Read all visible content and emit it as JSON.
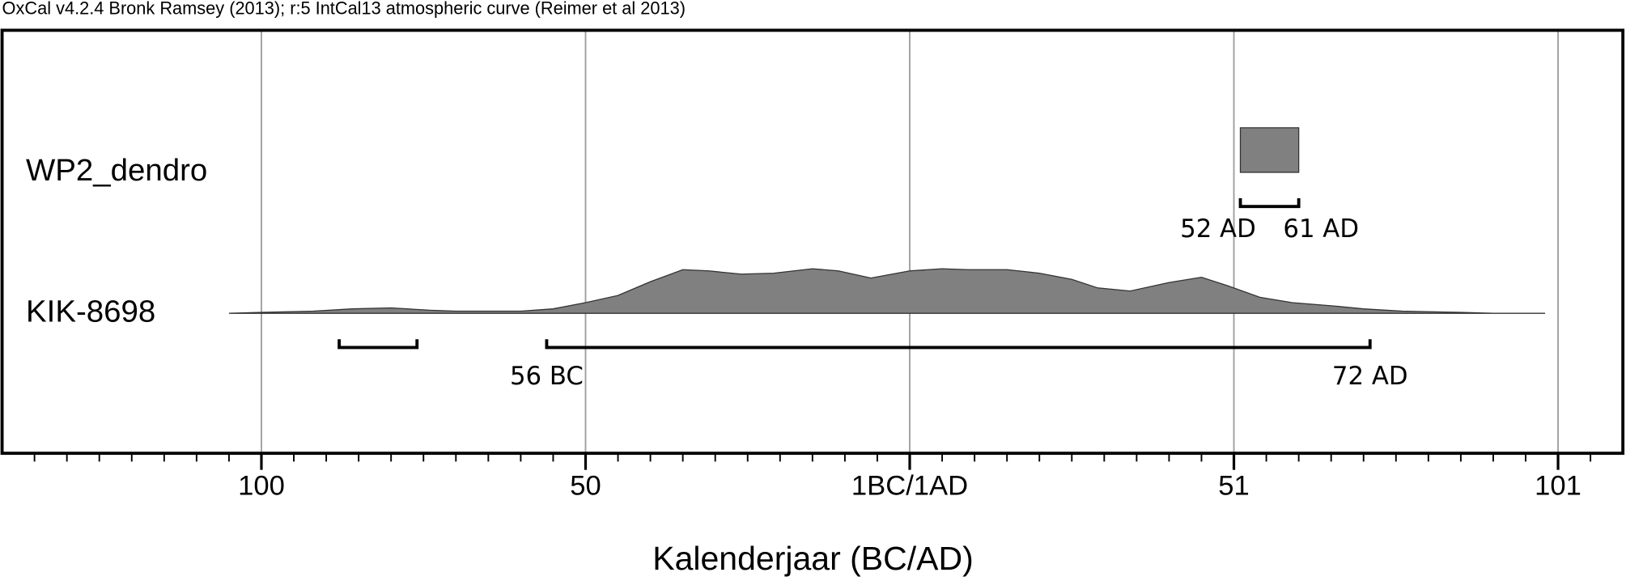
{
  "chart_data": {
    "type": "oxcal",
    "title": "OxCal v4.2.4 Bronk Ramsey (2013); r:5 IntCal13 atmospheric curve (Reimer et al 2013)",
    "x_label": "Kalenderjaar (BC/AD)",
    "xlim": [
      -139,
      111
    ],
    "xticks": [
      {
        "value": -99,
        "label": "100"
      },
      {
        "value": -49,
        "label": "50"
      },
      {
        "value": 1,
        "label": "1BC/1AD"
      },
      51,
      101
    ],
    "xticks_minor": [
      -134,
      -129,
      -124,
      -119,
      -114,
      -109,
      -104,
      -94,
      -89,
      -84,
      -79,
      -74,
      -69,
      -64,
      -59,
      -54,
      -44,
      -39,
      -34,
      -29,
      -24,
      -19,
      -14,
      -9,
      -4,
      6,
      11,
      16,
      21,
      26,
      31,
      36,
      41,
      46,
      56,
      61,
      66,
      71,
      76,
      81,
      86,
      91,
      96,
      106
    ],
    "grid": true,
    "series": [
      {
        "name": "WP2_dendro",
        "color": "#808080",
        "x": [
          52,
          52,
          61,
          61
        ],
        "values": [
          0,
          1,
          1,
          0
        ],
        "ranges": [
          [
            52,
            61
          ]
        ],
        "range_labels": [
          {
            "value": 52,
            "label": "52 AD"
          },
          {
            "value": 61,
            "label": "61 AD"
          }
        ]
      },
      {
        "name": "KIK-8698",
        "color": "#808080",
        "x": [
          -104,
          -99,
          -91,
          -85,
          -79,
          -73,
          -69,
          -59,
          -54,
          -49,
          -44,
          -39,
          -34,
          -30,
          -25,
          -20,
          -14,
          -10,
          -5,
          1,
          6,
          10,
          16,
          21,
          26,
          30,
          35,
          41,
          46,
          50,
          55,
          60,
          66,
          71,
          77,
          86,
          91,
          99
        ],
        "values": [
          0,
          0.02,
          0.05,
          0.1,
          0.12,
          0.07,
          0.05,
          0.05,
          0.1,
          0.24,
          0.4,
          0.71,
          0.98,
          0.95,
          0.88,
          0.9,
          1,
          0.95,
          0.79,
          0.95,
          1,
          0.98,
          0.98,
          0.9,
          0.76,
          0.57,
          0.5,
          0.69,
          0.81,
          0.62,
          0.36,
          0.24,
          0.17,
          0.1,
          0.05,
          0.02,
          0,
          0
        ],
        "ranges": [
          [
            -87,
            -75
          ],
          [
            -55,
            72
          ]
        ],
        "range_labels": [
          {
            "value": -55,
            "label": "56 BC"
          },
          {
            "value": 72,
            "label": "72 AD"
          }
        ]
      }
    ]
  }
}
